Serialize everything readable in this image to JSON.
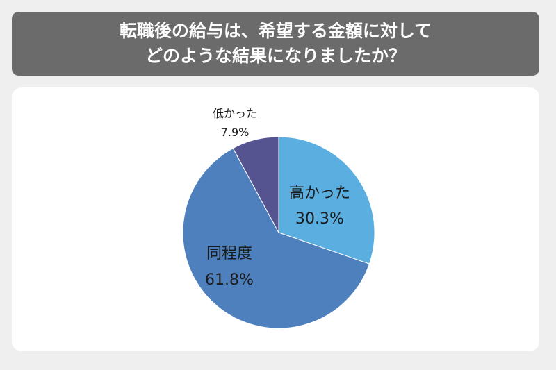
{
  "header": {
    "title_line1": "転職後の給与は、希望する金額に対して",
    "title_line2": "どのような結果になりましたか？"
  },
  "colors": {
    "header_bg": "#6b6b6b",
    "higher": "#5aaee0",
    "same": "#4f80be",
    "lower": "#555490",
    "text": "#1c1c1c"
  },
  "chart_data": {
    "type": "pie",
    "title": "転職後の給与は、希望する金額に対してどのような結果になりましたか？",
    "slices": [
      {
        "label": "高かった",
        "value": 30.3,
        "value_text": "30.3%"
      },
      {
        "label": "同程度",
        "value": 61.8,
        "value_text": "61.8%"
      },
      {
        "label": "低かった",
        "value": 7.9,
        "value_text": "7.9%"
      }
    ],
    "start": "12 o'clock",
    "direction": "clockwise"
  }
}
